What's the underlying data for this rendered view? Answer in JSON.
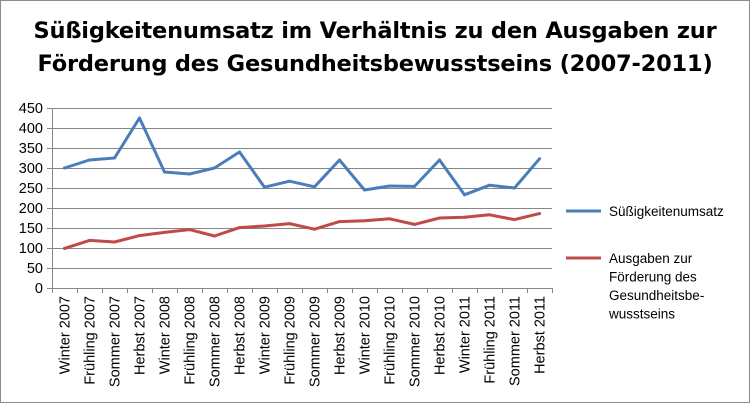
{
  "chart_data": {
    "type": "line",
    "title": [
      "Süßigkeitenumsatz im Verhältnis zu den Ausgaben zur",
      "Förderung des Gesundheitsbewusstseins (2007-2011)"
    ],
    "xlabel": "",
    "ylabel": "",
    "ylim": [
      0,
      450
    ],
    "yticks": [
      0,
      50,
      100,
      150,
      200,
      250,
      300,
      350,
      400,
      450
    ],
    "grid": true,
    "legend_position": "right",
    "categories": [
      "Winter 2007",
      "Frühling 2007",
      "Sommer 2007",
      "Herbst 2007",
      "Winter 2008",
      "Frühling 2008",
      "Sommer 2008",
      "Herbst 2008",
      "Winter 2009",
      "Frühling 2009",
      "Sommer 2009",
      "Herbst 2009",
      "Winter 2010",
      "Frühling 2010",
      "Sommer 2010",
      "Herbst 2010",
      "Winter 2011",
      "Frühling 2011",
      "Sommer 2011",
      "Herbst 2011"
    ],
    "series": [
      {
        "name": "Süßigkeitenumsatz",
        "legend_lines": [
          "Süßigkeitenumsatz"
        ],
        "color": "#4a7ebb",
        "values": [
          300,
          320,
          325,
          425,
          290,
          285,
          300,
          340,
          252,
          267,
          253,
          320,
          245,
          255,
          254,
          320,
          233,
          257,
          250,
          323
        ]
      },
      {
        "name": "Ausgaben zur Förderung des Gesundheitsbewusstseins",
        "legend_lines": [
          "Ausgaben zur",
          "Förderung des",
          "Gesundheitsbe-",
          "wusstseins"
        ],
        "color": "#be4b48",
        "values": [
          99,
          119,
          115,
          131,
          139,
          146,
          130,
          151,
          155,
          161,
          147,
          166,
          168,
          173,
          159,
          175,
          177,
          183,
          171,
          186
        ]
      }
    ]
  }
}
